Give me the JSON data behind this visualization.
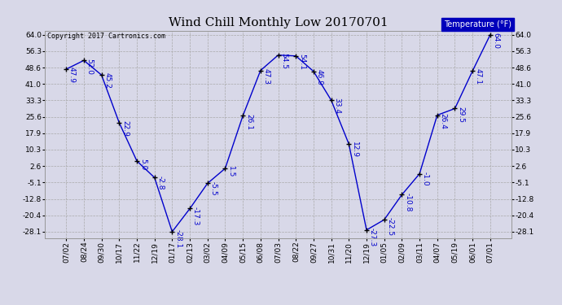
{
  "title": "Wind Chill Monthly Low 20170701",
  "copyright": "Copyright 2017 Cartronics.com",
  "legend_label": "Temperature (°F)",
  "x_labels": [
    "07/02",
    "08/24",
    "09/30",
    "10/17",
    "11/22",
    "12/19",
    "01/17",
    "02/13",
    "03/02",
    "04/09",
    "05/15",
    "06/08",
    "07/03",
    "08/22",
    "09/27",
    "10/31",
    "11/20",
    "12/19",
    "01/05",
    "02/09",
    "03/11",
    "04/07",
    "05/19",
    "06/01",
    "07/01"
  ],
  "y_values": [
    47.9,
    52.0,
    45.2,
    22.9,
    5.0,
    -2.8,
    -28.1,
    -17.3,
    -5.5,
    1.5,
    26.1,
    47.3,
    54.5,
    54.1,
    46.9,
    33.4,
    12.9,
    -27.3,
    -22.5,
    -10.8,
    -1.0,
    26.4,
    29.5,
    47.1,
    64.0
  ],
  "y_ticks": [
    64.0,
    56.3,
    48.6,
    41.0,
    33.3,
    25.6,
    17.9,
    10.3,
    2.6,
    -5.1,
    -12.8,
    -20.4,
    -28.1
  ],
  "ylim": [
    -31,
    66
  ],
  "line_color": "#0000cc",
  "marker_color": "#000000",
  "bg_color": "#d8d8e8",
  "grid_color": "#aaaaaa",
  "title_fontsize": 11,
  "label_fontsize": 6.5,
  "tick_fontsize": 6.5,
  "legend_bg": "#0000bb",
  "legend_text_color": "#ffffff"
}
